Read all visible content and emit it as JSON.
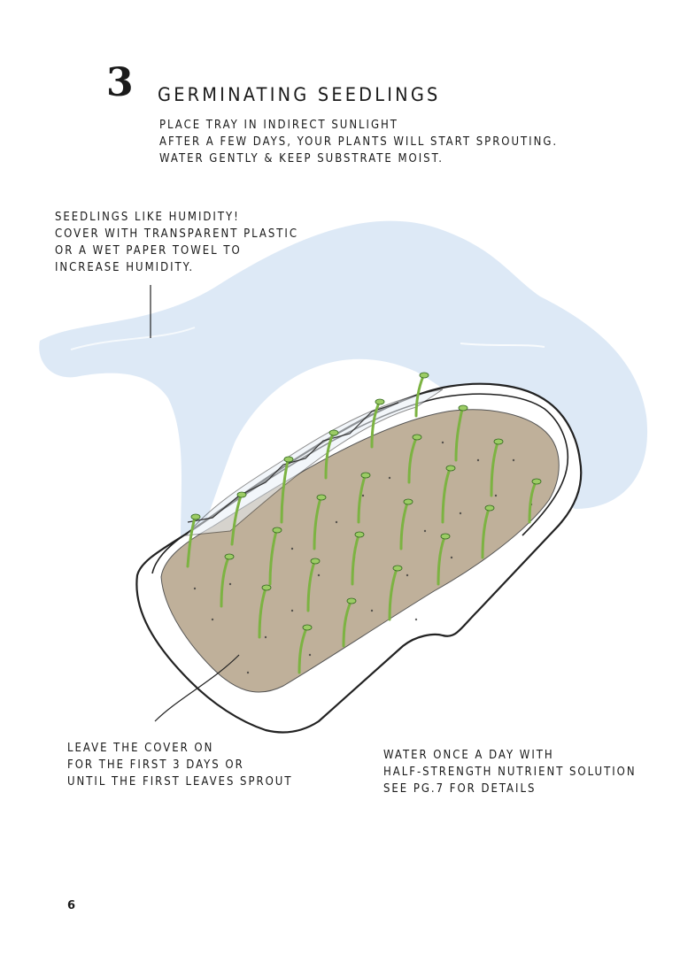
{
  "step": {
    "number": "3",
    "title": "GERMINATING SEEDLINGS"
  },
  "instructions": [
    "PLACE TRAY IN INDIRECT SUNLIGHT",
    "AFTER A FEW DAYS, YOUR PLANTS WILL START SPROUTING.",
    "WATER GENTLY & KEEP SUBSTRATE MOIST."
  ],
  "notes": {
    "humidity": [
      "SEEDLINGS LIKE HUMIDITY!",
      "COVER WITH TRANSPARENT PLASTIC",
      "OR A WET PAPER TOWEL TO",
      "INCREASE HUMIDITY."
    ],
    "cover": [
      "LEAVE THE COVER ON",
      "FOR THE FIRST 3 DAYS OR",
      "UNTIL THE FIRST LEAVES SPROUT"
    ],
    "water": [
      "WATER ONCE A DAY WITH",
      "HALF-STRENGTH NUTRIENT SOLUTION",
      "SEE PG.7 FOR DETAILS"
    ]
  },
  "page_number": "6",
  "colors": {
    "plastic_cover": "#dbe8f5",
    "soil": "#bfb09a",
    "seedling": "#8bc34a",
    "tray_outline": "#222222"
  }
}
